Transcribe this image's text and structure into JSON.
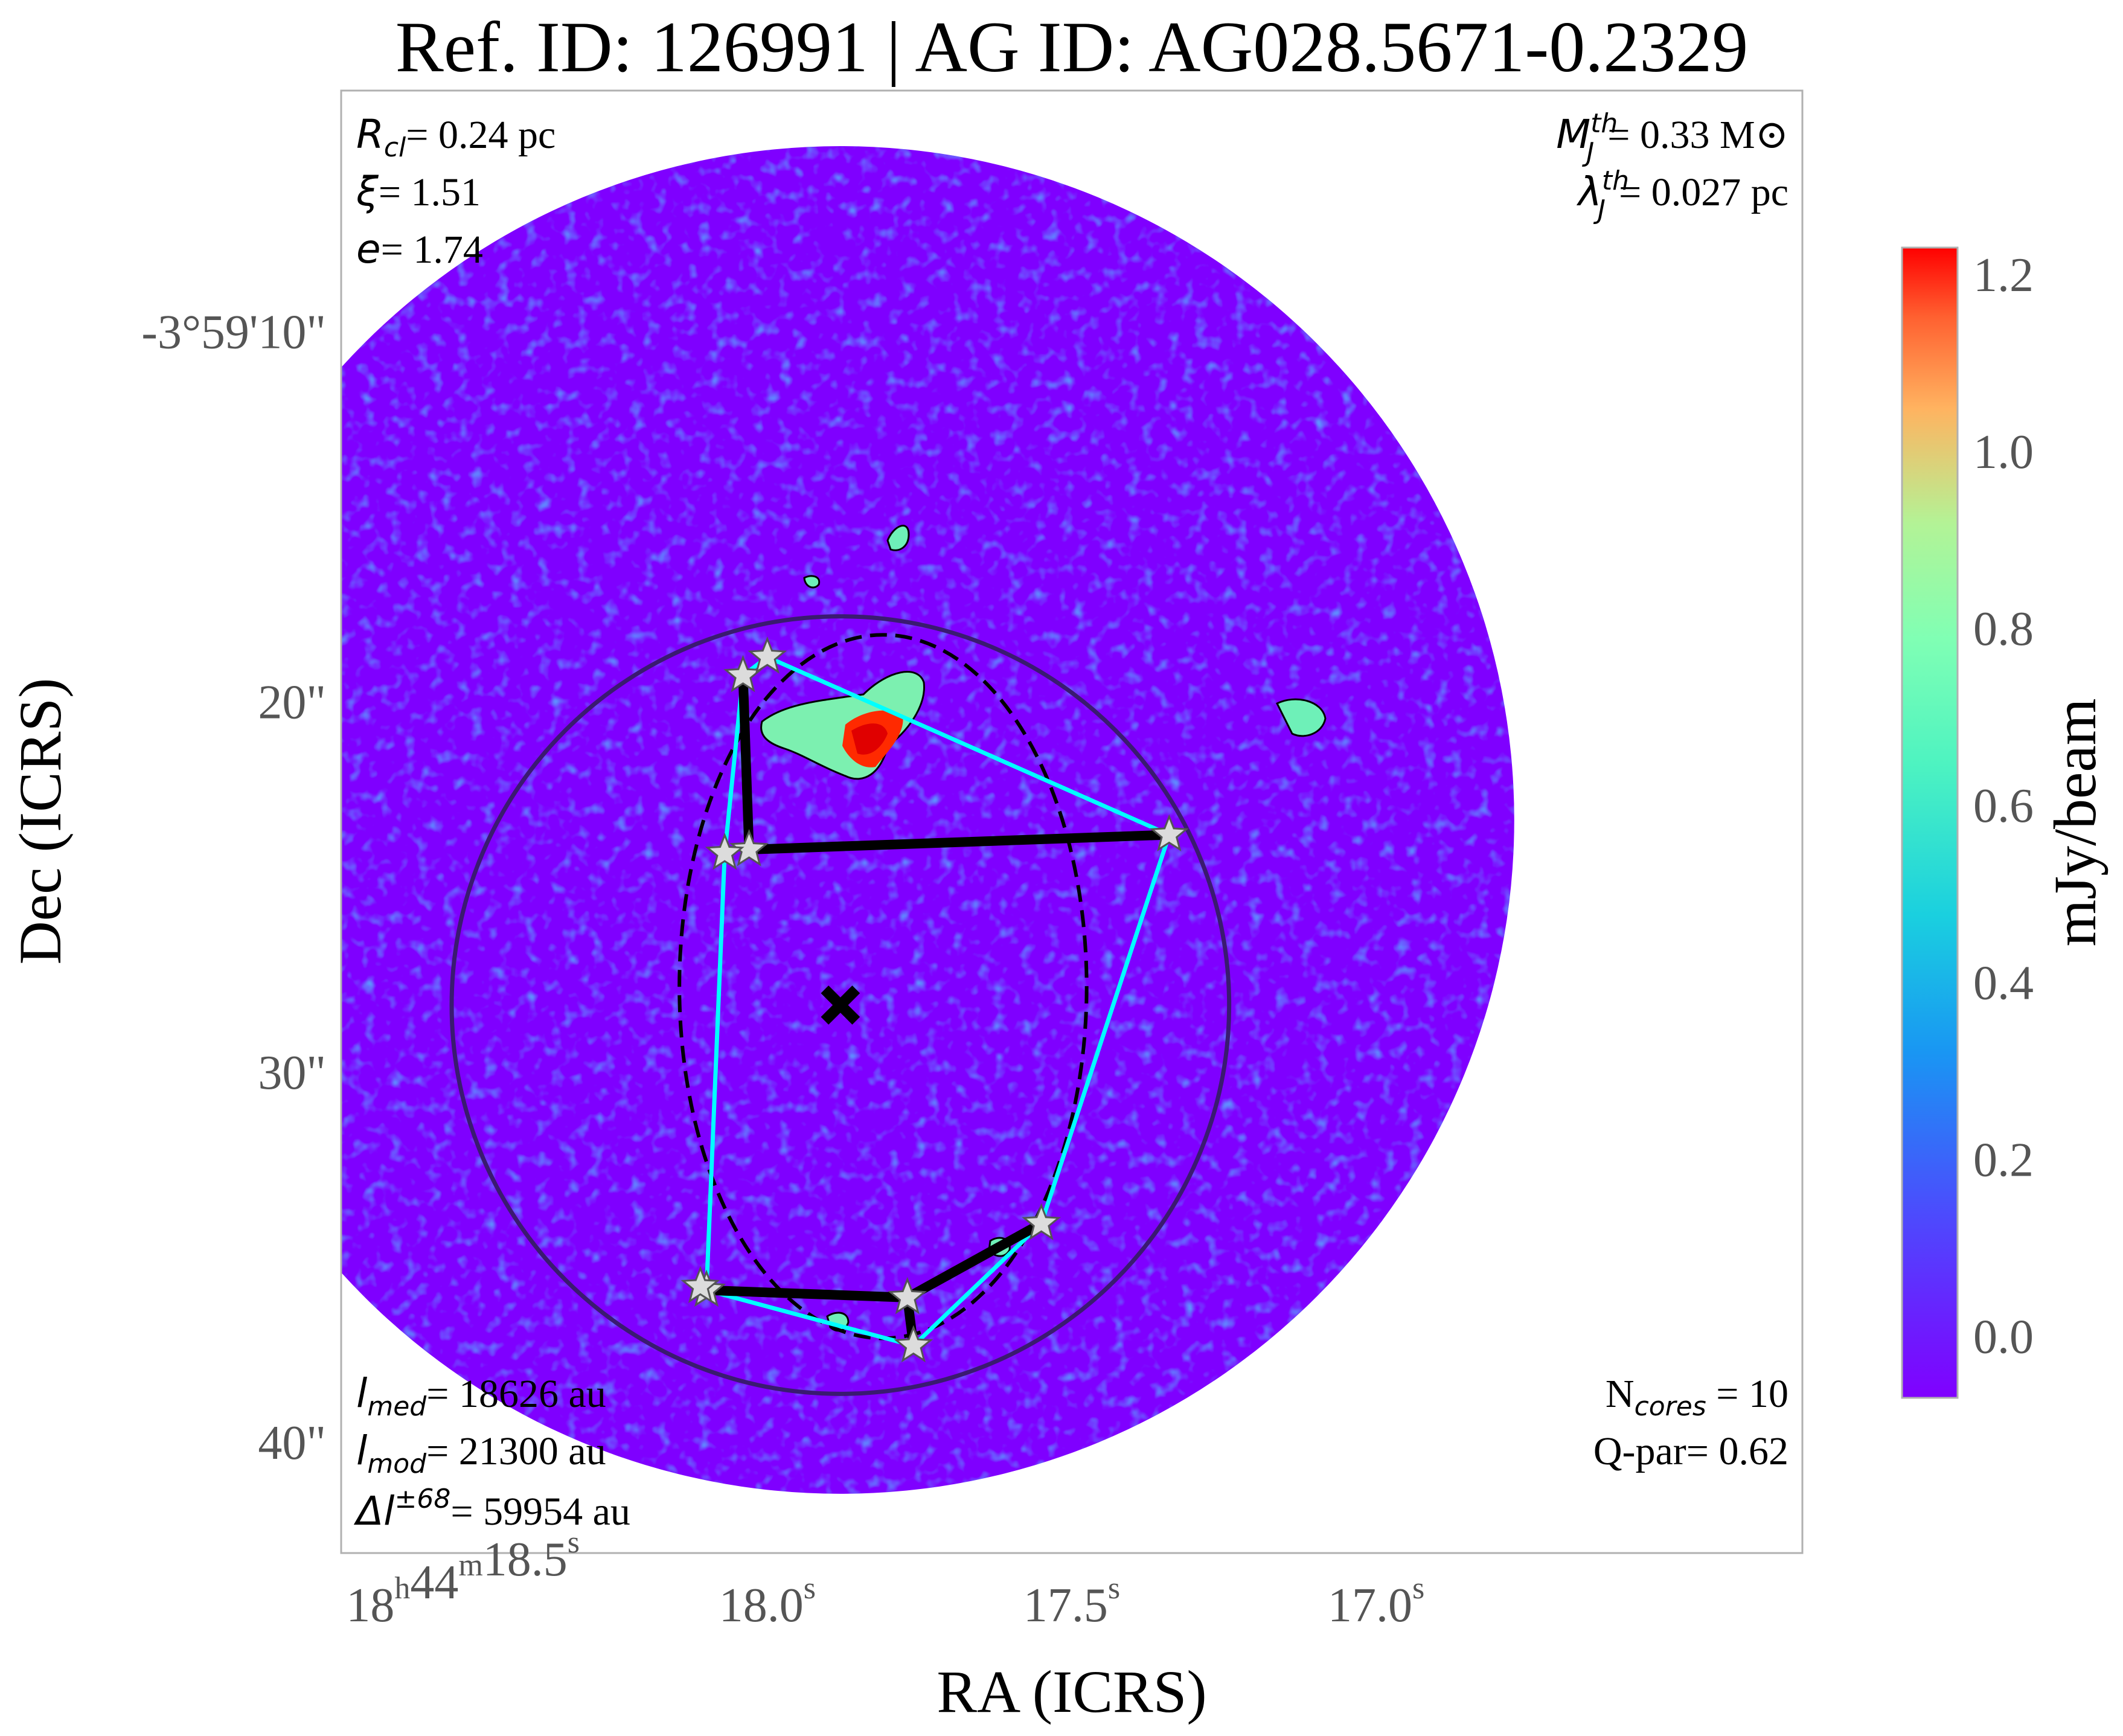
{
  "chart_data": {
    "type": "scatter",
    "title": "Ref. ID: 126991 | AG ID: AG028.5671-0.2329",
    "xlabel": "RA (ICRS)",
    "ylabel": "Dec (ICRS)",
    "x_unit": "seconds of RA (18h44m offset)",
    "y_unit": "arcsec (Dec -3°59' offset)",
    "xlim": [
      18.7,
      16.3
    ],
    "ylim": [
      43,
      3.5
    ],
    "x_ticks": [
      {
        "value": 18.5,
        "label": [
          "18",
          "h",
          "44",
          "m",
          "18.5",
          "s"
        ]
      },
      {
        "value": 18.0,
        "label": [
          "18.0",
          "s"
        ]
      },
      {
        "value": 17.5,
        "label": [
          "17.5",
          "s"
        ]
      },
      {
        "value": 17.0,
        "label": [
          "17.0",
          "s"
        ]
      }
    ],
    "y_ticks": [
      {
        "value": 10,
        "label": "-3°59'10\""
      },
      {
        "value": 20,
        "label": "20\""
      },
      {
        "value": 30,
        "label": "30\""
      },
      {
        "value": 40,
        "label": "40\""
      }
    ],
    "colorbar": {
      "label": "mJy/beam",
      "colormap": "rainbow",
      "range": [
        -0.07,
        1.23
      ],
      "ticks": [
        "0.0",
        "0.2",
        "0.4",
        "0.6",
        "0.8",
        "1.0",
        "1.2"
      ],
      "tick_values": [
        0.0,
        0.2,
        0.4,
        0.6,
        0.8,
        1.0,
        1.2
      ]
    },
    "cores": [
      {
        "ra": 18.04,
        "dec": 19.3
      },
      {
        "ra": 18.0,
        "dec": 18.8
      },
      {
        "ra": 17.34,
        "dec": 23.6
      },
      {
        "ra": 18.03,
        "dec": 24.0
      },
      {
        "ra": 18.07,
        "dec": 24.1
      },
      {
        "ra": 17.55,
        "dec": 34.1
      },
      {
        "ra": 18.1,
        "dec": 35.9
      },
      {
        "ra": 18.11,
        "dec": 35.8
      },
      {
        "ra": 17.77,
        "dec": 36.1
      },
      {
        "ra": 17.76,
        "dec": 37.4
      }
    ],
    "mst_edges": [
      [
        0,
        3
      ],
      [
        3,
        2
      ],
      [
        6,
        8
      ],
      [
        8,
        9
      ],
      [
        8,
        5
      ]
    ],
    "hull": [
      1,
      2,
      5,
      9,
      6,
      4,
      0
    ],
    "cluster_center": {
      "ra": 17.88,
      "dec": 28.2
    },
    "cluster_circle_radius_arcsec": 10.5,
    "fitted_ellipse": {
      "ra": 17.81,
      "dec": 27.7,
      "semi_major_arcsec": 9.5,
      "semi_minor_arcsec": 5.5
    },
    "map_extent": {
      "ra": 17.88,
      "dec": 23.2,
      "radius_arcsec": 18.2
    },
    "annotations": {
      "top_left": [
        "R_cl= 0.24 pc",
        "ξ= 1.51",
        "e= 1.74"
      ],
      "top_right": [
        "M_J^th= 0.33 M⊙",
        "λ_J^th= 0.027 pc"
      ],
      "bottom_left": [
        "l_med= 18626 au",
        "l_mod= 21300 au",
        "Δl^±68= 59954 au"
      ],
      "bottom_right": [
        "N_cores = 10",
        "Q-par= 0.62"
      ]
    },
    "grid": false
  },
  "text": {
    "title": "Ref. ID: 126991 | AG ID: AG028.5671-0.2329",
    "xlabel": "RA (ICRS)",
    "ylabel": "Dec (ICRS)",
    "cbar_label": "mJy/beam",
    "tl": {
      "r_sym": "R",
      "r_sub": "cl",
      "r_val": "= 0.24 pc",
      "xi_sym": "ξ",
      "xi_val": "= 1.51",
      "e_sym": "e",
      "e_val": "= 1.74"
    },
    "tr": {
      "m_sym": "M",
      "m_sup": "th",
      "m_sub": "J",
      "m_val": "= 0.33 M⊙",
      "l_sym": "λ",
      "l_sup": "th",
      "l_sub": "J",
      "l_val": "= 0.027 pc"
    },
    "bl": {
      "med_sym": "l",
      "med_sub": "med",
      "med_val": "= 18626 au",
      "mod_sym": "l",
      "mod_sub": "mod",
      "mod_val": "= 21300 au",
      "d_sym": "Δl",
      "d_sup": "±68",
      "d_val": "= 59954 au"
    },
    "br": {
      "n_sym": "N",
      "n_sub": "cores",
      "n_val": " = 10",
      "q": "Q-par= 0.62"
    }
  },
  "colors": {
    "background": "#8000ff",
    "hull": "#00ffff",
    "mst": "#000000",
    "circle": "#3a1a70",
    "star_fill": "#dcdcdc",
    "tick_text": "#555555"
  }
}
